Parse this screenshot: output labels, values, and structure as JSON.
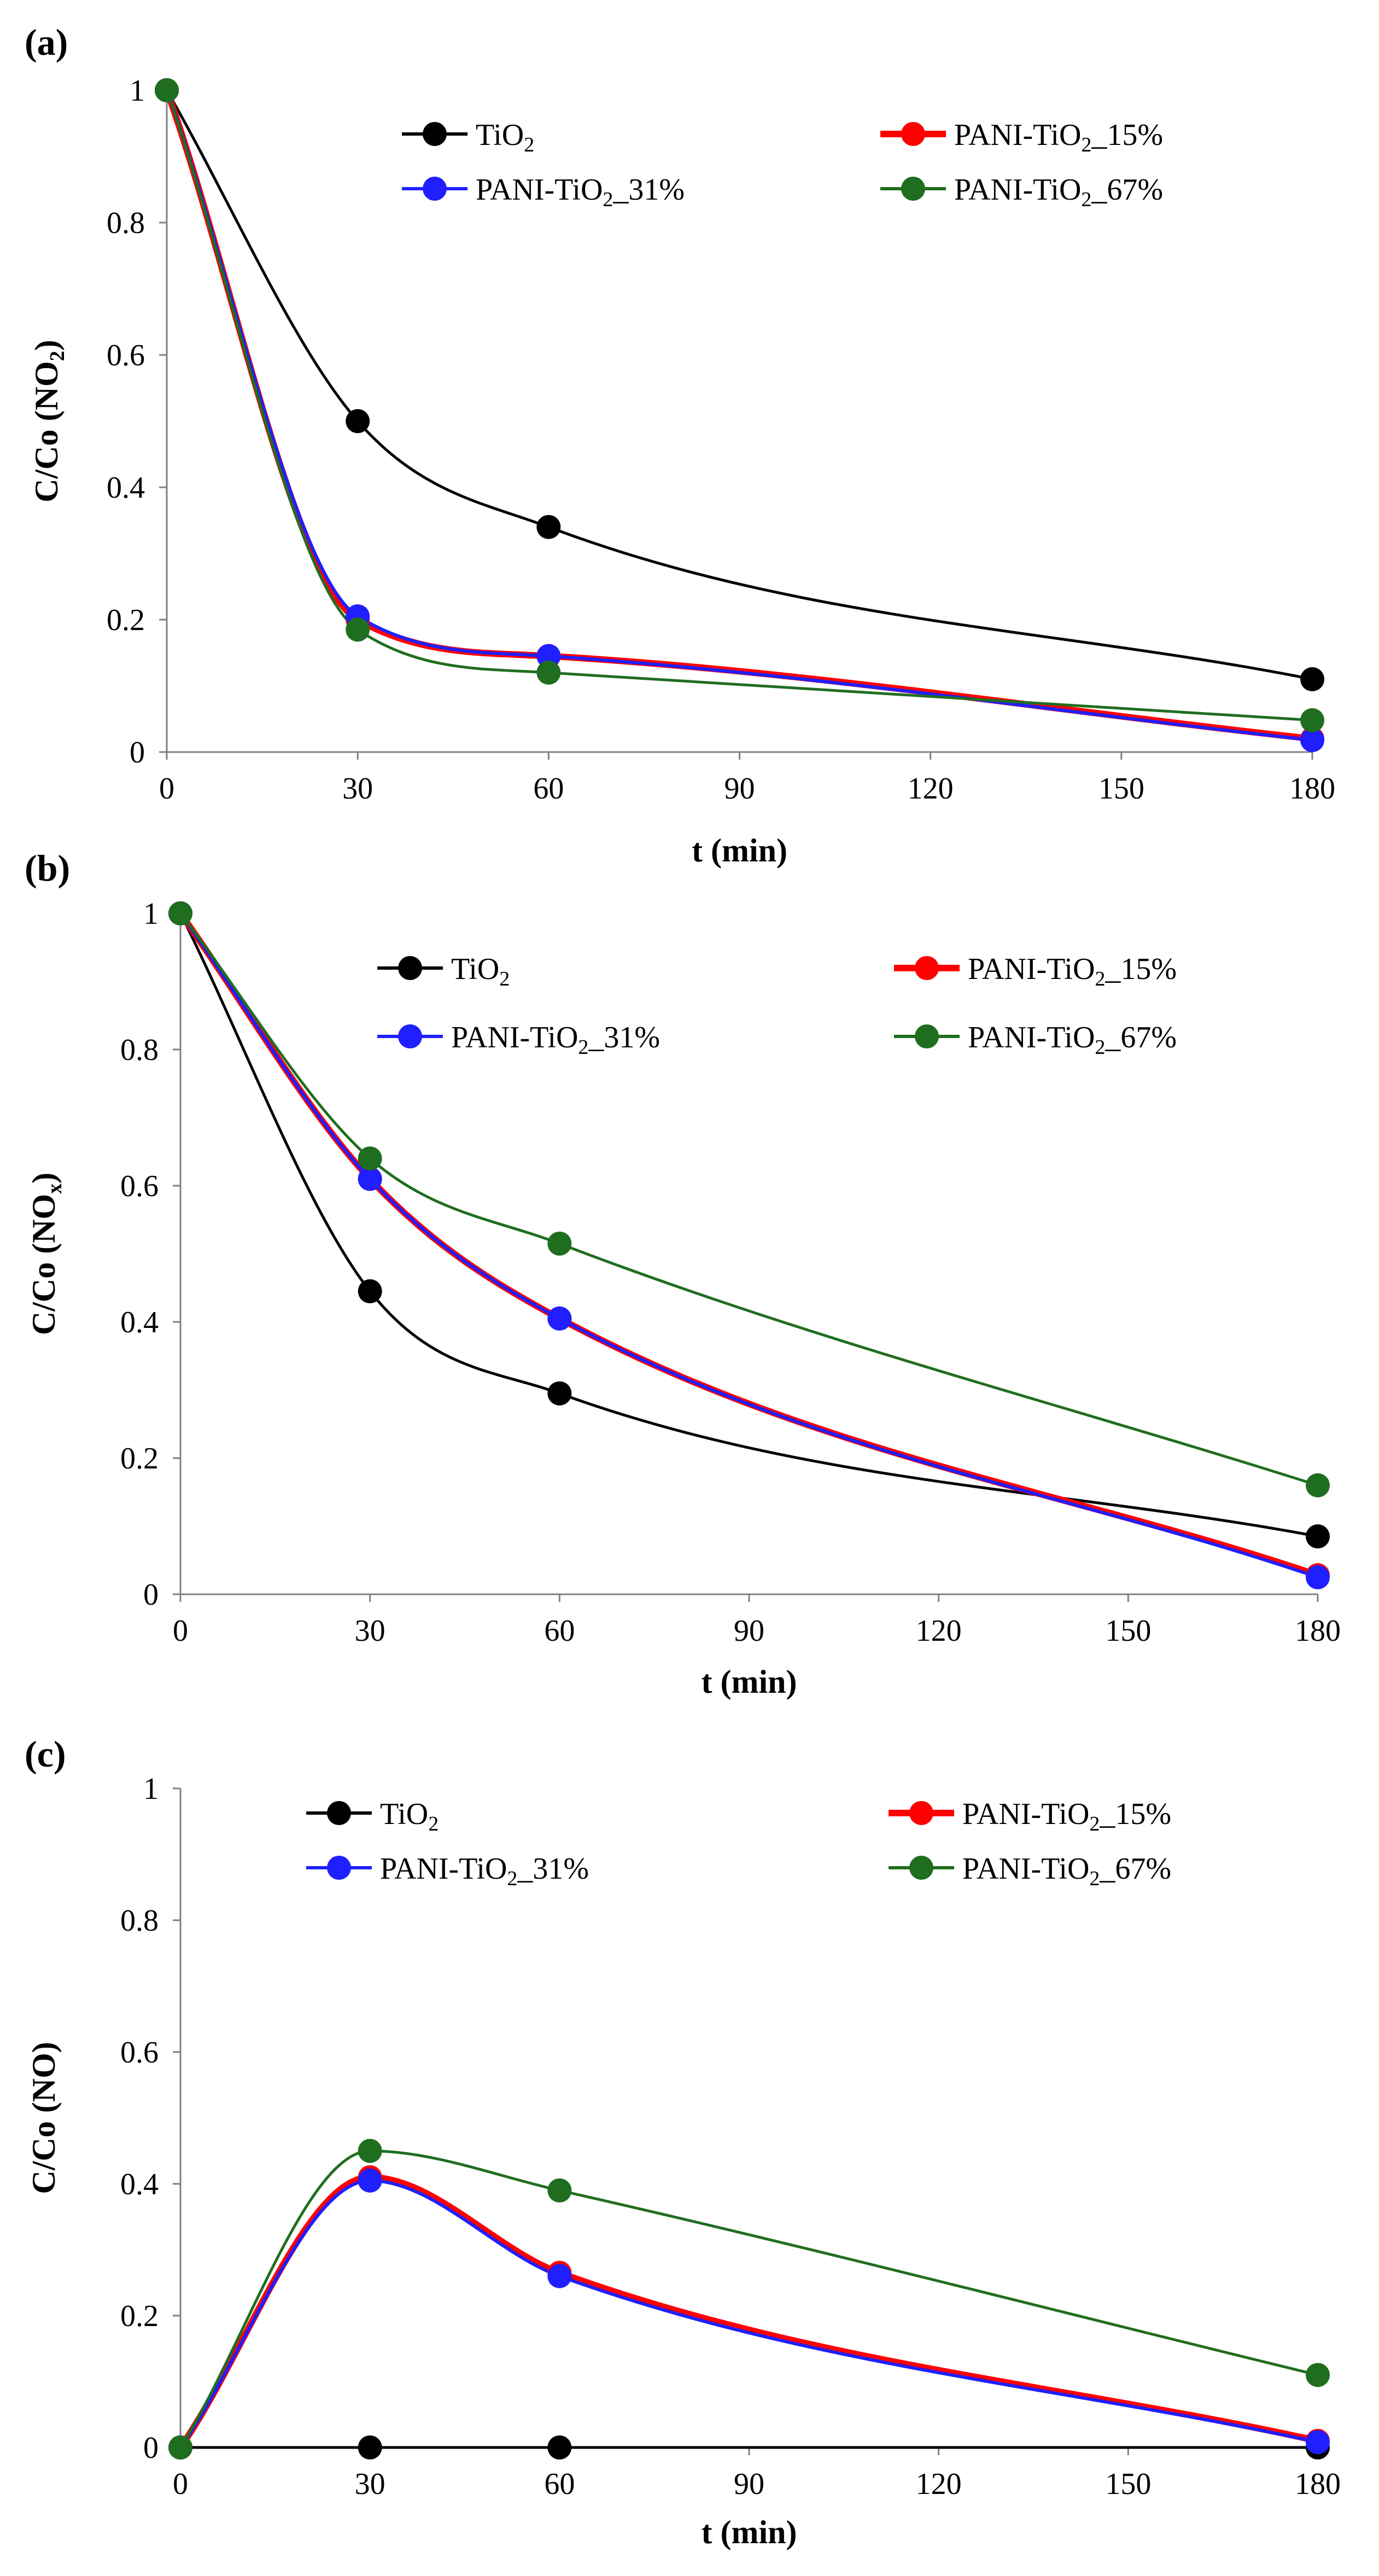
{
  "chart_data": [
    {
      "type": "line",
      "panel_label": "(a)",
      "xlabel": "t (min)",
      "ylabel": "C/Co (NO₂)",
      "ylabel_main": "C/Co (NO",
      "ylabel_sub": "2",
      "ylabel_end": ")",
      "x": [
        0,
        30,
        60,
        180
      ],
      "xlim": [
        0,
        180
      ],
      "ylim": [
        0,
        1
      ],
      "xticks": [
        "0",
        "30",
        "60",
        "90",
        "120",
        "150",
        "180"
      ],
      "yticks": [
        "0",
        "0.2",
        "0.4",
        "0.6",
        "0.8",
        "1"
      ],
      "series": [
        {
          "name": "TiO2",
          "label_main": "TiO",
          "label_sub": "2",
          "label_tail": "",
          "color": "#000000",
          "values": [
            1.0,
            0.5,
            0.34,
            0.11
          ]
        },
        {
          "name": "PANI-TiO2_15%",
          "label_main": "PANI-TiO",
          "label_sub": "2",
          "label_tail": "_15%",
          "color": "#ff0000",
          "values": [
            1.0,
            0.2,
            0.145,
            0.02
          ]
        },
        {
          "name": "PANI-TiO2_31%",
          "label_main": "PANI-TiO",
          "label_sub": "2",
          "label_tail": "_31%",
          "color": "#1f1fff",
          "values": [
            1.0,
            0.205,
            0.145,
            0.018
          ]
        },
        {
          "name": "PANI-TiO2_67%",
          "label_main": "PANI-TiO",
          "label_sub": "2",
          "label_tail": "_67%",
          "color": "#1f6e1f",
          "values": [
            1.0,
            0.185,
            0.12,
            0.048
          ]
        }
      ]
    },
    {
      "type": "line",
      "panel_label": "(b)",
      "xlabel": "t (min)",
      "ylabel": "C/Co (NOₓ)",
      "ylabel_main": "C/Co (NO",
      "ylabel_sub": "x",
      "ylabel_end": ")",
      "x": [
        0,
        30,
        60,
        180
      ],
      "xlim": [
        0,
        180
      ],
      "ylim": [
        0,
        1
      ],
      "xticks": [
        "0",
        "30",
        "60",
        "90",
        "120",
        "150",
        "180"
      ],
      "yticks": [
        "0",
        "0.2",
        "0.4",
        "0.6",
        "0.8",
        "1"
      ],
      "series": [
        {
          "name": "TiO2",
          "label_main": "TiO",
          "label_sub": "2",
          "label_tail": "",
          "color": "#000000",
          "values": [
            1.0,
            0.445,
            0.295,
            0.085
          ]
        },
        {
          "name": "PANI-TiO2_15%",
          "label_main": "PANI-TiO",
          "label_sub": "2",
          "label_tail": "_15%",
          "color": "#ff0000",
          "values": [
            1.0,
            0.61,
            0.405,
            0.028
          ]
        },
        {
          "name": "PANI-TiO2_31%",
          "label_main": "PANI-TiO",
          "label_sub": "2",
          "label_tail": "_31%",
          "color": "#1f1fff",
          "values": [
            1.0,
            0.61,
            0.405,
            0.025
          ]
        },
        {
          "name": "PANI-TiO2_67%",
          "label_main": "PANI-TiO",
          "label_sub": "2",
          "label_tail": "_67%",
          "color": "#1f6e1f",
          "values": [
            1.0,
            0.64,
            0.515,
            0.16
          ]
        }
      ]
    },
    {
      "type": "line",
      "panel_label": "(c)",
      "xlabel": "t (min)",
      "ylabel": "C/Co (NO)",
      "ylabel_main": "C/Co (NO)",
      "ylabel_sub": "",
      "ylabel_end": "",
      "x": [
        0,
        30,
        60,
        180
      ],
      "xlim": [
        0,
        180
      ],
      "ylim": [
        0,
        1
      ],
      "xticks": [
        "0",
        "30",
        "60",
        "90",
        "120",
        "150",
        "180"
      ],
      "yticks": [
        "0",
        "0.2",
        "0.4",
        "0.6",
        "0.8",
        "1"
      ],
      "series": [
        {
          "name": "TiO2",
          "label_main": "TiO",
          "label_sub": "2",
          "label_tail": "",
          "color": "#000000",
          "values": [
            0.0,
            0.0,
            0.0,
            0.0
          ]
        },
        {
          "name": "PANI-TiO2_15%",
          "label_main": "PANI-TiO",
          "label_sub": "2",
          "label_tail": "_15%",
          "color": "#ff0000",
          "values": [
            0.0,
            0.41,
            0.265,
            0.01
          ]
        },
        {
          "name": "PANI-TiO2_31%",
          "label_main": "PANI-TiO",
          "label_sub": "2",
          "label_tail": "_31%",
          "color": "#1f1fff",
          "values": [
            0.0,
            0.405,
            0.26,
            0.008
          ]
        },
        {
          "name": "PANI-TiO2_67%",
          "label_main": "PANI-TiO",
          "label_sub": "2",
          "label_tail": "_67%",
          "color": "#1f6e1f",
          "values": [
            0.0,
            0.45,
            0.39,
            0.11
          ]
        }
      ]
    }
  ]
}
